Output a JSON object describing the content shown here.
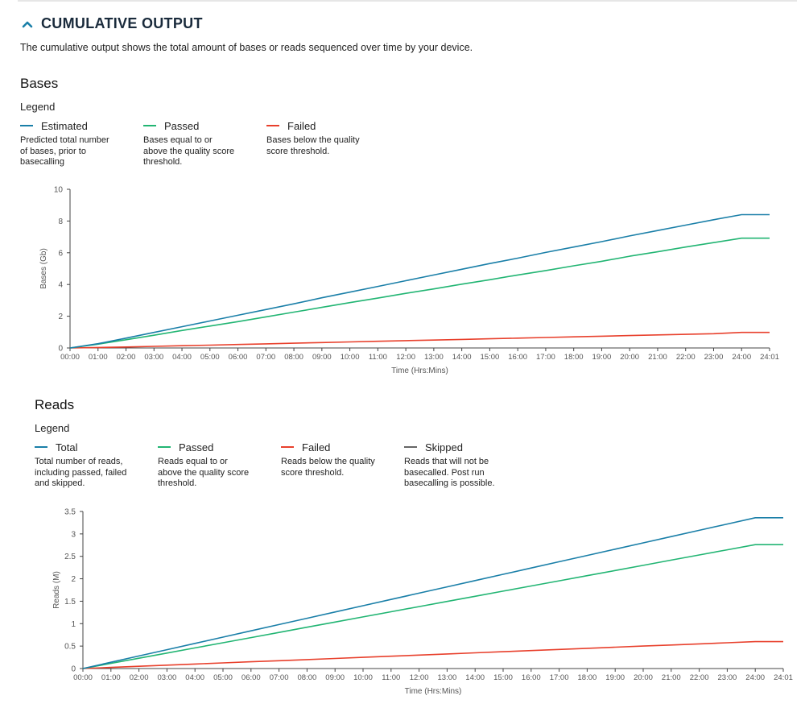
{
  "section": {
    "title": "CUMULATIVE OUTPUT",
    "description": "The cumulative output shows the total amount of bases or reads sequenced over time by your device."
  },
  "charts": {
    "bases": {
      "heading": "Bases",
      "legend_title": "Legend",
      "legend": [
        {
          "label": "Estimated",
          "color": "#1a7fa8",
          "desc": [
            "Predicted total number",
            "of bases, prior to",
            "basecalling"
          ]
        },
        {
          "label": "Passed",
          "color": "#22b573",
          "desc": [
            "Bases equal to or",
            "above the quality score",
            "threshold."
          ]
        },
        {
          "label": "Failed",
          "color": "#e8402c",
          "desc": [
            "Bases below the quality",
            "score threshold."
          ]
        }
      ]
    },
    "reads": {
      "heading": "Reads",
      "legend_title": "Legend",
      "legend": [
        {
          "label": "Total",
          "color": "#1a7fa8",
          "desc": [
            "Total number of reads,",
            "including passed, failed",
            "and skipped."
          ]
        },
        {
          "label": "Passed",
          "color": "#22b573",
          "desc": [
            "Reads equal to or",
            "above the quality score",
            "threshold."
          ]
        },
        {
          "label": "Failed",
          "color": "#e8402c",
          "desc": [
            "Reads below the quality",
            "score threshold."
          ]
        },
        {
          "label": "Skipped",
          "color": "#666666",
          "desc": [
            "Reads that will not be",
            "basecalled. Post run",
            "basecalling is possible."
          ]
        }
      ]
    }
  },
  "chart_data": [
    {
      "type": "line",
      "title": "Bases",
      "xlabel": "Time (Hrs:Mins)",
      "ylabel": "Bases (Gb)",
      "ylim": [
        0,
        10
      ],
      "yticks": [
        0,
        2,
        4,
        6,
        8,
        10
      ],
      "grid": false,
      "categories": [
        "00:00",
        "01:00",
        "02:00",
        "03:00",
        "04:00",
        "05:00",
        "06:00",
        "07:00",
        "08:00",
        "09:00",
        "10:00",
        "11:00",
        "12:00",
        "13:00",
        "14:00",
        "15:00",
        "16:00",
        "17:00",
        "18:00",
        "19:00",
        "20:00",
        "21:00",
        "22:00",
        "23:00",
        "24:00",
        "24:01"
      ],
      "series": [
        {
          "name": "Estimated",
          "color": "#1a7fa8",
          "values": [
            0,
            0.27,
            0.62,
            0.98,
            1.34,
            1.7,
            2.06,
            2.42,
            2.78,
            3.16,
            3.52,
            3.88,
            4.24,
            4.6,
            4.96,
            5.32,
            5.66,
            6.02,
            6.36,
            6.7,
            7.06,
            7.4,
            7.74,
            8.08,
            8.4,
            8.4
          ]
        },
        {
          "name": "Passed",
          "color": "#22b573",
          "values": [
            0,
            0.24,
            0.52,
            0.8,
            1.1,
            1.38,
            1.66,
            1.96,
            2.26,
            2.56,
            2.86,
            3.14,
            3.44,
            3.72,
            4.02,
            4.3,
            4.6,
            4.88,
            5.18,
            5.46,
            5.78,
            6.06,
            6.36,
            6.64,
            6.92,
            6.92
          ]
        },
        {
          "name": "Failed",
          "color": "#e8402c",
          "values": [
            0,
            0.03,
            0.06,
            0.1,
            0.14,
            0.18,
            0.22,
            0.26,
            0.3,
            0.34,
            0.38,
            0.42,
            0.46,
            0.5,
            0.54,
            0.58,
            0.62,
            0.66,
            0.7,
            0.74,
            0.78,
            0.82,
            0.86,
            0.9,
            0.98,
            0.98
          ]
        }
      ]
    },
    {
      "type": "line",
      "title": "Reads",
      "xlabel": "Time (Hrs:Mins)",
      "ylabel": "Reads (M)",
      "ylim": [
        0,
        3.5
      ],
      "yticks": [
        0,
        0.5,
        1,
        1.5,
        2,
        2.5,
        3,
        3.5
      ],
      "grid": false,
      "categories": [
        "00:00",
        "01:00",
        "02:00",
        "03:00",
        "04:00",
        "05:00",
        "06:00",
        "07:00",
        "08:00",
        "09:00",
        "10:00",
        "11:00",
        "12:00",
        "13:00",
        "14:00",
        "15:00",
        "16:00",
        "17:00",
        "18:00",
        "19:00",
        "20:00",
        "21:00",
        "22:00",
        "23:00",
        "24:00",
        "24:01"
      ],
      "series": [
        {
          "name": "Total",
          "color": "#1a7fa8",
          "values": [
            0,
            0.14,
            0.28,
            0.42,
            0.56,
            0.7,
            0.84,
            0.98,
            1.12,
            1.26,
            1.4,
            1.54,
            1.68,
            1.82,
            1.96,
            2.1,
            2.24,
            2.38,
            2.52,
            2.66,
            2.8,
            2.94,
            3.08,
            3.22,
            3.36,
            3.36
          ]
        },
        {
          "name": "Passed",
          "color": "#22b573",
          "values": [
            0,
            0.115,
            0.23,
            0.345,
            0.46,
            0.575,
            0.69,
            0.805,
            0.92,
            1.035,
            1.15,
            1.265,
            1.38,
            1.495,
            1.61,
            1.725,
            1.84,
            1.955,
            2.07,
            2.185,
            2.3,
            2.415,
            2.53,
            2.645,
            2.76,
            2.76
          ]
        },
        {
          "name": "Failed",
          "color": "#e8402c",
          "values": [
            0,
            0.025,
            0.05,
            0.075,
            0.1,
            0.125,
            0.15,
            0.175,
            0.2,
            0.225,
            0.25,
            0.275,
            0.3,
            0.325,
            0.35,
            0.375,
            0.4,
            0.425,
            0.45,
            0.475,
            0.5,
            0.525,
            0.55,
            0.575,
            0.6,
            0.6
          ]
        }
      ]
    }
  ]
}
